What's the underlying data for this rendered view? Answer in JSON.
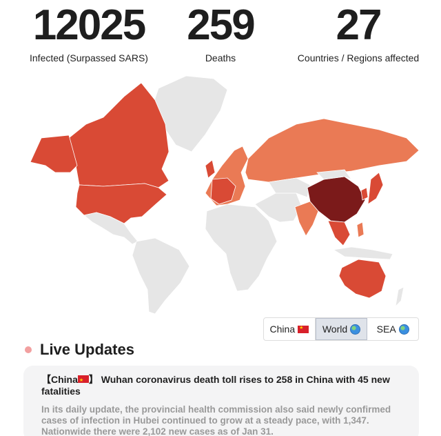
{
  "stats": {
    "infected": {
      "value": "12025",
      "label": "Infected (Surpassed SARS)"
    },
    "deaths": {
      "value": "259",
      "label": "Deaths"
    },
    "countries": {
      "value": "27",
      "label": "Countries / Regions affected"
    }
  },
  "map": {
    "colors": {
      "no_data": "#e6e6e6",
      "low": "#ea7a55",
      "mid": "#d94a35",
      "high": "#7b1a1a",
      "border": "#ffffff"
    }
  },
  "region_switch": {
    "options": [
      {
        "label": "China",
        "icon": "china-flag-icon",
        "active": false
      },
      {
        "label": "World",
        "icon": "globe-icon",
        "active": true
      },
      {
        "label": "SEA",
        "icon": "globe-icon",
        "active": false
      }
    ]
  },
  "live_updates": {
    "title": "Live Updates",
    "items": [
      {
        "headline_prefix": "【China",
        "headline_suffix": "】 Wuhan coronavirus death toll rises to 258 in China with 45 new fatalities",
        "body": "In its daily update, the provincial health commission also said newly confirmed cases of infection in Hubei continued to grow at a steady pace, with 1,347. Nationwide there were 2,102 new cases as of Jan 31."
      }
    ]
  }
}
